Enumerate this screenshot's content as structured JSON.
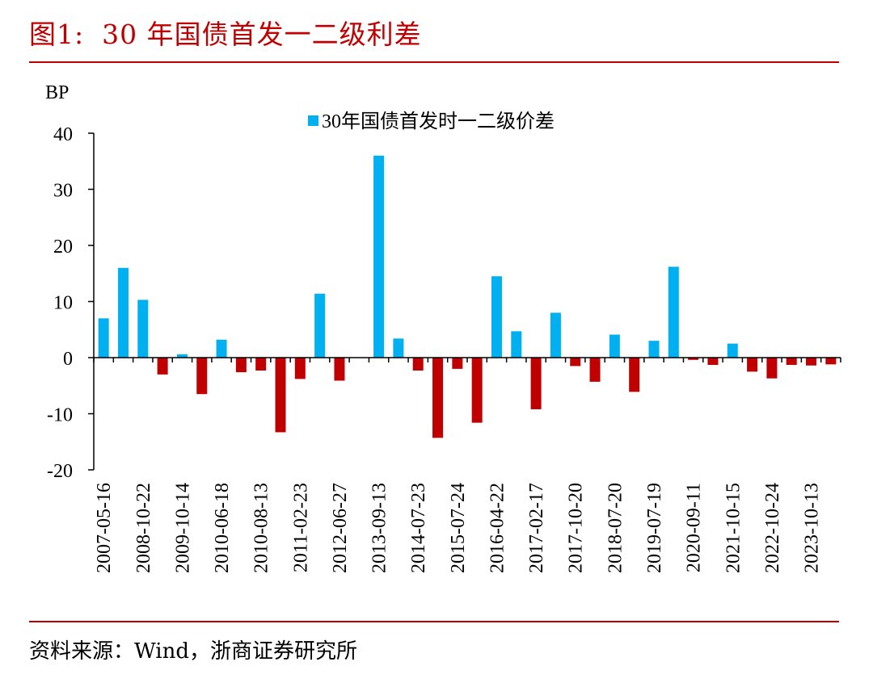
{
  "figure": {
    "label": "图1:",
    "title": "30 年国债首发一二级利差"
  },
  "source": "资料来源：Wind，浙商证券研究所",
  "colors": {
    "positive": "#00b0f0",
    "negative": "#c00000",
    "accent": "#c00000"
  },
  "chart_data": {
    "type": "bar",
    "ylabel": "BP",
    "ylim": [
      -20,
      40
    ],
    "yticks": [
      -20,
      -10,
      0,
      10,
      20,
      30,
      40
    ],
    "grid": false,
    "legend_position": "top-center",
    "series": [
      {
        "name": "30年国债首发时一二级价差"
      }
    ],
    "tick_labels": [
      "2007-05-16",
      "2008-10-22",
      "2009-10-14",
      "2010-06-18",
      "2010-08-13",
      "2011-02-23",
      "2012-06-27",
      "2013-09-13",
      "2014-07-23",
      "2015-07-24",
      "2016-04-22",
      "2017-02-17",
      "2017-10-20",
      "2018-07-20",
      "2019-07-19",
      "2020-09-11",
      "2021-10-15",
      "2022-10-24",
      "2023-10-13"
    ],
    "values": [
      7.0,
      16.0,
      10.3,
      -3.0,
      0.6,
      -6.5,
      3.2,
      -2.6,
      -2.3,
      -13.3,
      -3.8,
      11.4,
      -4.1,
      0,
      36.0,
      3.4,
      -2.3,
      -14.3,
      -2.0,
      -11.6,
      14.5,
      4.7,
      -9.2,
      8.0,
      -1.5,
      -4.3,
      4.1,
      -6.1,
      3.0,
      16.2,
      -0.4,
      -1.3,
      2.5,
      -2.5,
      -3.7,
      -1.3,
      -1.4,
      -1.2
    ]
  }
}
